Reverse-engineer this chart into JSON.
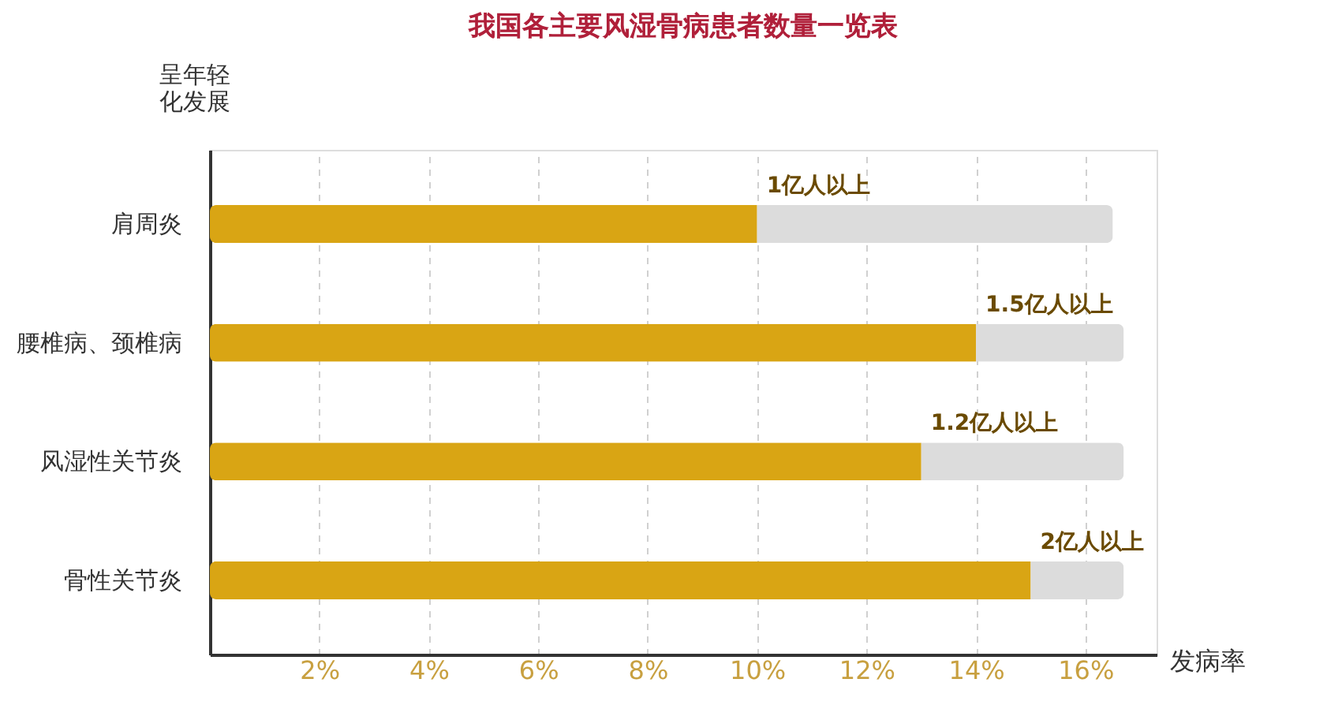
{
  "chart_data": {
    "type": "bar",
    "orientation": "horizontal",
    "title": "我国各主要风湿骨病患者数量一览表",
    "ylabel": "呈年轻化发展",
    "xlabel": "发病率",
    "categories": [
      "肩周炎",
      "腰椎病、颈椎病",
      "风湿性关节炎",
      "骨性关节炎"
    ],
    "stacked": true,
    "series": [
      {
        "color": "#d9a514",
        "values": [
          10.0,
          14.0,
          13.0,
          15.0
        ]
      },
      {
        "color": "#dcdcdc",
        "values": [
          6.5,
          2.7,
          3.7,
          1.7
        ]
      }
    ],
    "xlim": [
      0,
      17.3
    ],
    "xticks": [
      {
        "value": 2,
        "label": "2%"
      },
      {
        "value": 4,
        "label": "4%"
      },
      {
        "value": 6,
        "label": "6%"
      },
      {
        "value": 8,
        "label": "8%"
      },
      {
        "value": 10,
        "label": "10%"
      },
      {
        "value": 12,
        "label": "12%"
      },
      {
        "value": 14,
        "label": "14%"
      },
      {
        "value": 16,
        "label": "16%"
      }
    ],
    "grid": "x",
    "annotations": [
      "1亿人以上",
      "1.5亿人以上",
      "1.2亿人以上",
      "2亿人以上"
    ]
  }
}
